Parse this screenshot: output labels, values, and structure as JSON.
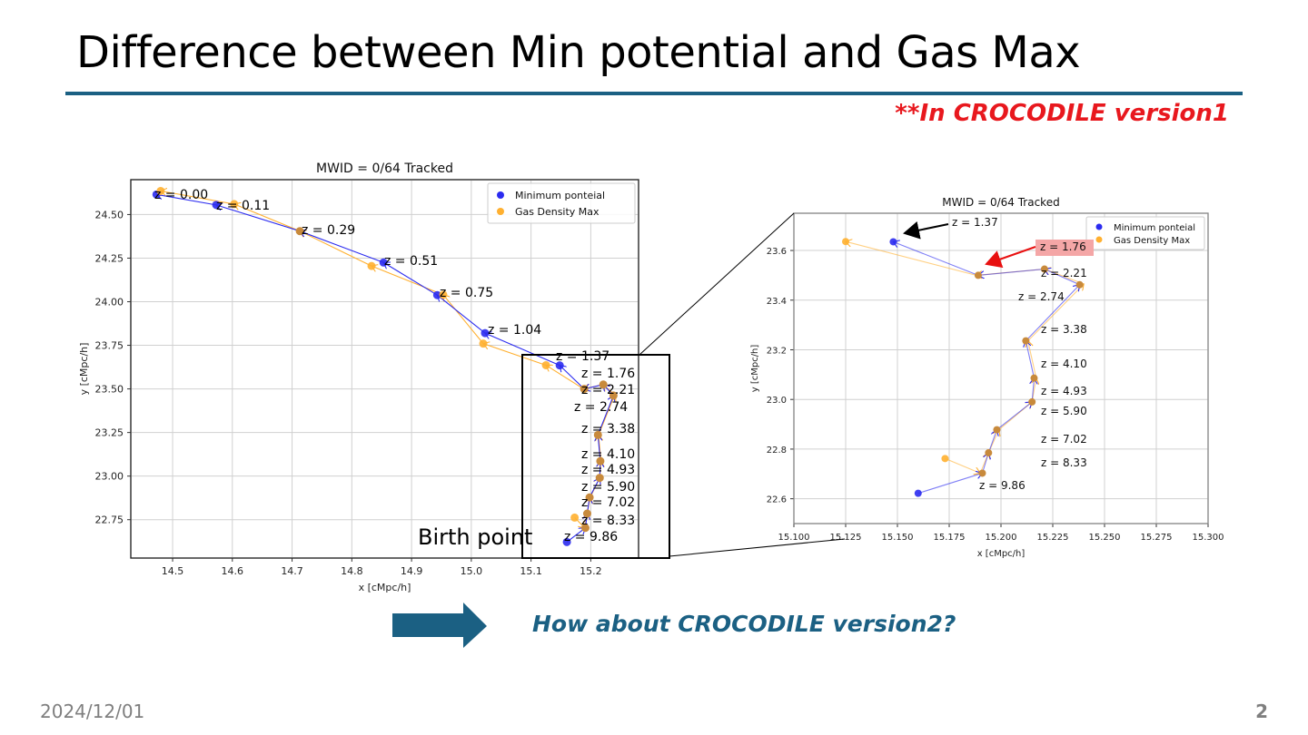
{
  "slide": {
    "title": "Difference between Min potential and Gas Max",
    "note": "**In CROCODILE version1",
    "question": "How about CROCODILE version2?",
    "birth_label": "Birth point",
    "footer_date": "2024/12/01",
    "page_number": "2",
    "colors": {
      "accent": "#1b6083",
      "note": "#e8181e",
      "min_potential": "#2b2bf0",
      "gas_max": "#ffb030",
      "overlap": "#c88a3c"
    }
  },
  "chart_data": [
    {
      "type": "line",
      "title": "MWID = 0/64 Tracked",
      "xlabel": "x [cMpc/h]",
      "ylabel": "y [cMpc/h]",
      "xlim": [
        14.43,
        15.28
      ],
      "ylim": [
        22.53,
        24.7
      ],
      "xticks": [
        "14.5",
        "14.6",
        "14.7",
        "14.8",
        "14.9",
        "15.0",
        "15.1",
        "15.2"
      ],
      "yticks": [
        "22.75",
        "23.00",
        "23.25",
        "23.50",
        "23.75",
        "24.00",
        "24.25",
        "24.50"
      ],
      "grid": true,
      "legend": {
        "position": "upper right",
        "entries": [
          "Minimum ponteial",
          "Gas Density Max"
        ]
      },
      "z_labels": [
        "z = 0.00",
        "z = 0.11",
        "z = 0.29",
        "z = 0.51",
        "z = 0.75",
        "z = 1.04",
        "z = 1.37",
        "z = 1.76",
        "z = 2.21",
        "z = 2.74",
        "z = 3.38",
        "z = 4.10",
        "z = 4.93",
        "z = 5.90",
        "z = 7.02",
        "z = 8.33",
        "z = 9.86"
      ],
      "series": [
        {
          "name": "Minimum ponteial",
          "x": [
            14.473,
            14.573,
            14.713,
            14.853,
            14.943,
            15.023,
            15.148,
            15.189,
            15.221,
            15.238,
            15.212,
            15.216,
            15.215,
            15.198,
            15.194,
            15.191,
            15.16
          ],
          "y": [
            24.615,
            24.555,
            24.405,
            24.225,
            24.038,
            23.82,
            23.635,
            23.5,
            23.525,
            23.462,
            23.236,
            23.086,
            22.99,
            22.878,
            22.785,
            22.703,
            22.622
          ]
        },
        {
          "name": "Gas Density Max",
          "x": [
            14.48,
            14.603,
            14.713,
            14.833,
            14.953,
            15.02,
            15.125,
            15.188,
            15.221,
            15.24,
            15.213,
            15.217,
            15.215,
            15.199,
            15.194,
            15.19,
            15.173
          ],
          "y": [
            24.635,
            24.56,
            24.405,
            24.205,
            24.04,
            23.76,
            23.636,
            23.5,
            23.525,
            23.465,
            23.236,
            23.086,
            22.99,
            22.878,
            22.785,
            22.703,
            22.762
          ]
        }
      ]
    },
    {
      "type": "line",
      "title": "MWID = 0/64 Tracked",
      "xlabel": "x [cMpc/h]",
      "ylabel": "y [cMpc/h]",
      "xlim": [
        15.1,
        15.3
      ],
      "ylim": [
        22.5,
        23.75
      ],
      "xticks": [
        "15.100",
        "15.125",
        "15.150",
        "15.175",
        "15.200",
        "15.225",
        "15.250",
        "15.275",
        "15.300"
      ],
      "yticks": [
        "22.6",
        "22.8",
        "23.0",
        "23.2",
        "23.4",
        "23.6"
      ],
      "grid": true,
      "legend": {
        "position": "upper right",
        "entries": [
          "Minimum ponteial",
          "Gas Density Max"
        ]
      },
      "annotations": [
        {
          "text": "z = 1.37",
          "arrow": "black"
        },
        {
          "text": "z = 1.76",
          "arrow": "red",
          "highlight": "#f4a6a6"
        }
      ],
      "z_labels": [
        "z = 1.37",
        "z = 1.76",
        "z = 2.21",
        "z = 2.74",
        "z = 3.38",
        "z = 4.10",
        "z = 4.93",
        "z = 5.90",
        "z = 7.02",
        "z = 8.33",
        "z = 9.86"
      ],
      "series": [
        {
          "name": "Minimum ponteial",
          "x": [
            15.148,
            15.189,
            15.221,
            15.238,
            15.212,
            15.216,
            15.215,
            15.198,
            15.194,
            15.191,
            15.16
          ],
          "y": [
            23.635,
            23.5,
            23.525,
            23.462,
            23.236,
            23.086,
            22.99,
            22.878,
            22.785,
            22.703,
            22.622
          ]
        },
        {
          "name": "Gas Density Max",
          "x": [
            15.125,
            15.188,
            15.221,
            15.24,
            15.213,
            15.217,
            15.215,
            15.199,
            15.194,
            15.19,
            15.173
          ],
          "y": [
            23.636,
            23.5,
            23.525,
            23.465,
            23.236,
            23.086,
            22.99,
            22.878,
            22.785,
            22.703,
            22.762
          ]
        }
      ]
    }
  ]
}
